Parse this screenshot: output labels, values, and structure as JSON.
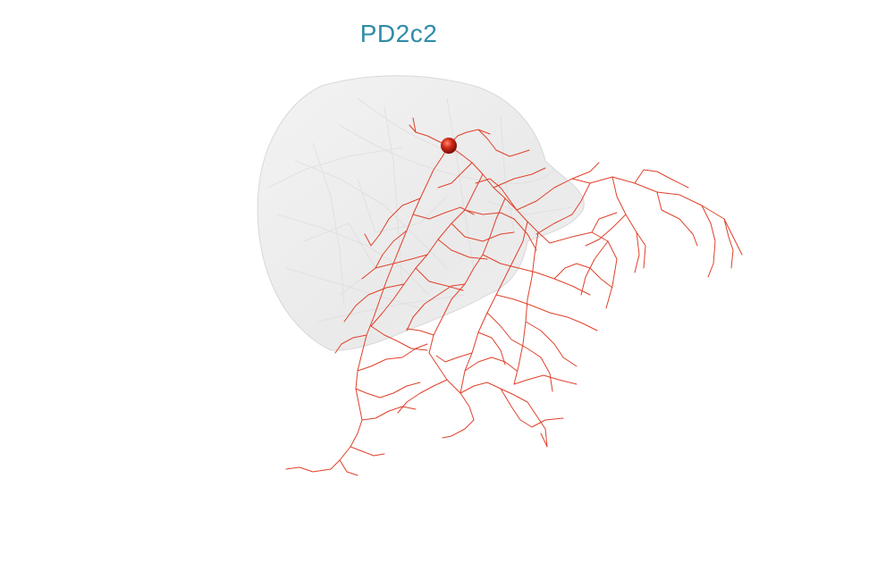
{
  "title": "PD2c2",
  "colors": {
    "title": "#2f8ca8",
    "neuron": "#e0402a",
    "soma": "#c41e10",
    "mesh_fill": "#e9e9e9",
    "mesh_stroke": "#d4d4d4"
  }
}
